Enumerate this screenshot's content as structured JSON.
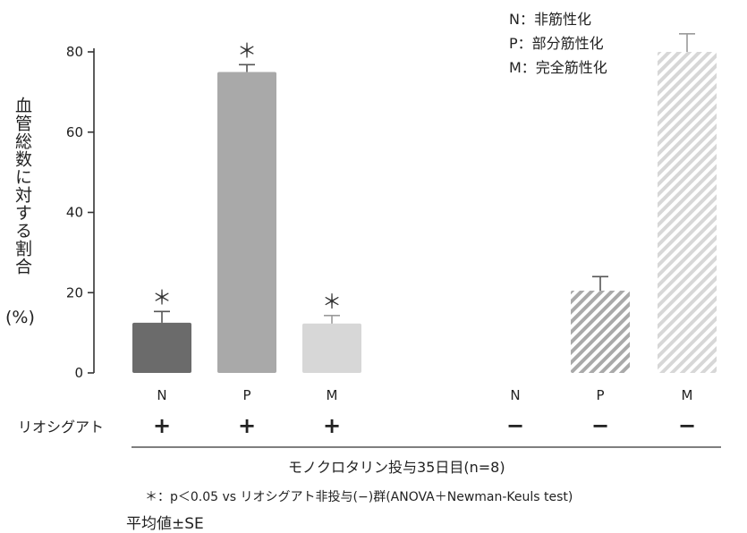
{
  "chart_data": {
    "type": "bar",
    "ylabel": "血管総数に対する割合",
    "yunit": "(%)",
    "ylim": [
      0,
      80
    ],
    "yticks": [
      "0",
      "20",
      "40",
      "60",
      "80"
    ],
    "categories": [
      "N",
      "P",
      "M",
      "N",
      "P",
      "M"
    ],
    "values": [
      12.5,
      75,
      12.3,
      0,
      20.5,
      80
    ],
    "errors": [
      2.8,
      1.8,
      2.0,
      0,
      3.5,
      4.5
    ],
    "significance": [
      "＊",
      "＊",
      "＊",
      "",
      "",
      ""
    ],
    "treatment_row_label": "リオシグアト",
    "treatment": [
      "+",
      "+",
      "+",
      "−",
      "−",
      "−"
    ],
    "bar_colors": [
      "#6b6b6b",
      "#a9a9a9",
      "#d7d7d7",
      "#a9a9a9",
      "#a9a9a9",
      "#d7d7d7"
    ],
    "bar_hatched": [
      false,
      false,
      false,
      true,
      true,
      true
    ],
    "legend": [
      "N：非筋性化",
      "P：部分筋性化",
      "M：完全筋性化"
    ],
    "caption": "モノクロタリン投与35日目(n=8)",
    "footnote": "＊：p＜0.05 vs リオシグアト非投与(−)群(ANOVA＋Newman-Keuls test)",
    "stat_note": "平均値±SE"
  }
}
